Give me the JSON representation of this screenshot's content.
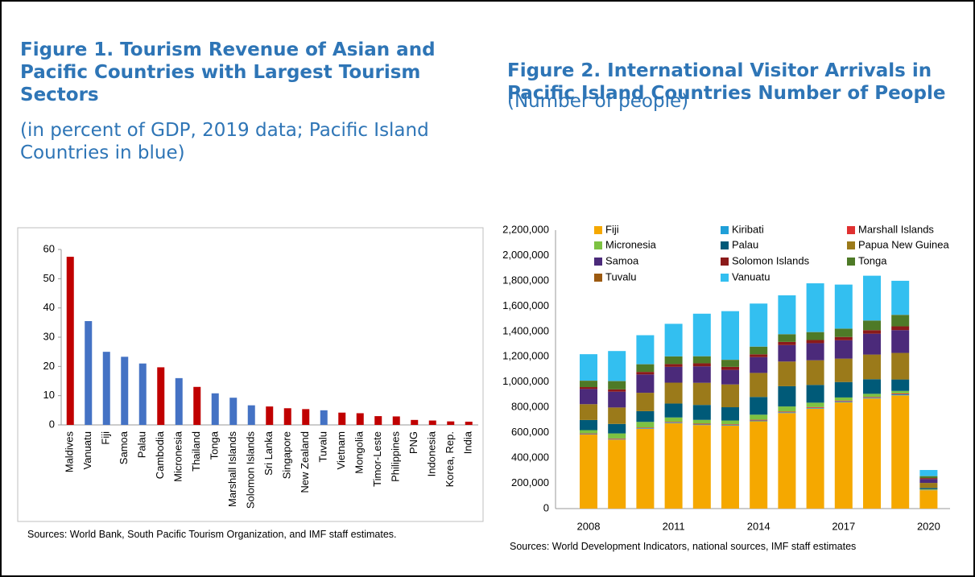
{
  "chart_data": [
    {
      "type": "bar",
      "title": "Figure 1. Tourism Revenue of Asian and Pacific Countries with Largest Tourism Sectors",
      "subtitle": "(in percent of GDP, 2019 data; Pacific Island Countries in blue)",
      "source": "Sources: World Bank, South Pacific Tourism Organization, and IMF staff estimates.",
      "categories": [
        "Maldives",
        "Vanuatu",
        "Fiji",
        "Samoa",
        "Palau",
        "Cambodia",
        "Micronesia",
        "Thailand",
        "Tonga",
        "Marshall Islands",
        "Solomon Islands",
        "Sri Lanka",
        "Singapore",
        "New Zealand",
        "Tuvalu",
        "Vietnam",
        "Mongolia",
        "Timor-Leste",
        "Philippines",
        "PNG",
        "Indonesia",
        "Korea, Rep.",
        "India"
      ],
      "values": [
        57.5,
        35.5,
        25,
        23.3,
        21,
        19.7,
        16,
        13,
        10.8,
        9.3,
        6.7,
        6.3,
        5.7,
        5.4,
        5,
        4.2,
        4,
        3,
        2.9,
        1.7,
        1.5,
        1.2,
        1.1
      ],
      "colors": [
        "#c00000",
        "#4472c4",
        "#4472c4",
        "#4472c4",
        "#4472c4",
        "#c00000",
        "#4472c4",
        "#c00000",
        "#4472c4",
        "#4472c4",
        "#4472c4",
        "#c00000",
        "#c00000",
        "#c00000",
        "#4472c4",
        "#c00000",
        "#c00000",
        "#c00000",
        "#c00000",
        "#c00000",
        "#c00000",
        "#c00000",
        "#c00000"
      ],
      "ylim": [
        0,
        60
      ],
      "yticks": [
        0,
        10,
        20,
        30,
        40,
        50,
        60
      ],
      "grid": false
    },
    {
      "type": "stacked_bar",
      "title": "Figure 2. International Visitor Arrivals in Pacific Island Countries Number of People",
      "subtitle": "(Number of people)",
      "source": "Sources: World Development Indicators, national sources, IMF staff estimates",
      "categories": [
        2008,
        null,
        null,
        2011,
        null,
        null,
        2014,
        null,
        null,
        2017,
        null,
        null,
        2020
      ],
      "legend": "upper left",
      "series": [
        {
          "name": "Fiji",
          "color": "#f5a800",
          "values": [
            585000,
            545000,
            630000,
            675000,
            660000,
            655000,
            690000,
            755000,
            790000,
            840000,
            870000,
            895000,
            145000
          ]
        },
        {
          "name": "Kiribati",
          "color": "#1f9fd8",
          "values": [
            4000,
            4000,
            5000,
            5000,
            5000,
            5000,
            6000,
            6000,
            6000,
            7000,
            6000,
            8000,
            1000
          ]
        },
        {
          "name": "Marshall Islands",
          "color": "#e03030",
          "values": [
            5000,
            5000,
            5000,
            5000,
            6000,
            6000,
            6000,
            6000,
            6000,
            6000,
            6000,
            7000,
            2000
          ]
        },
        {
          "name": "Micronesia",
          "color": "#7dc242",
          "values": [
            26000,
            40000,
            45000,
            35000,
            30000,
            30000,
            40000,
            40000,
            35000,
            25000,
            25000,
            20000,
            5000
          ]
        },
        {
          "name": "Palau",
          "color": "#005a78",
          "values": [
            80000,
            75000,
            85000,
            110000,
            118000,
            105000,
            140000,
            160000,
            140000,
            122000,
            115000,
            90000,
            10000
          ]
        },
        {
          "name": "Papua New Guinea",
          "color": "#9b7a1a",
          "values": [
            125000,
            130000,
            145000,
            165000,
            175000,
            180000,
            190000,
            195000,
            195000,
            185000,
            195000,
            210000,
            40000
          ]
        },
        {
          "name": "Samoa",
          "color": "#4b2a7a",
          "values": [
            120000,
            125000,
            145000,
            125000,
            130000,
            115000,
            125000,
            130000,
            135000,
            145000,
            165000,
            180000,
            30000
          ]
        },
        {
          "name": "Solomon Islands",
          "color": "#8b1a1a",
          "values": [
            15000,
            18000,
            20000,
            22000,
            24000,
            24000,
            22000,
            25000,
            25000,
            26000,
            28000,
            30000,
            8000
          ]
        },
        {
          "name": "Tonga",
          "color": "#4e7a27",
          "values": [
            50000,
            65000,
            60000,
            60000,
            55000,
            55000,
            60000,
            60000,
            62000,
            65000,
            75000,
            90000,
            15000
          ]
        },
        {
          "name": "Tuvalu",
          "color": "#9c5a10",
          "values": [
            1000,
            1000,
            1000,
            1000,
            1000,
            1000,
            1000,
            1000,
            1000,
            1000,
            1000,
            1000,
            1000
          ]
        },
        {
          "name": "Vanuatu",
          "color": "#33bff0",
          "values": [
            209000,
            237000,
            229000,
            257000,
            336000,
            384000,
            340000,
            307000,
            385000,
            348000,
            354000,
            269000,
            48000
          ]
        }
      ],
      "ylim": [
        0,
        2200000
      ],
      "yticks": [
        0,
        {
          "value": 200000,
          "label": "200,000"
        },
        {
          "value": 400000,
          "label": "400,000"
        },
        {
          "value": 600000,
          "label": "600,000"
        },
        {
          "value": 800000,
          "label": "800,000"
        },
        {
          "value": 1000000,
          "label": "1,000,000"
        },
        {
          "value": 1200000,
          "label": "1,200,000"
        },
        {
          "value": 1400000,
          "label": "1,400,000"
        },
        {
          "value": 1600000,
          "label": "1,600,000"
        },
        {
          "value": 1800000,
          "label": "1,800,000"
        },
        {
          "value": 2000000,
          "label": "2,000,000"
        },
        {
          "value": 2200000,
          "label": "2,200,000"
        }
      ],
      "grid": false
    }
  ]
}
